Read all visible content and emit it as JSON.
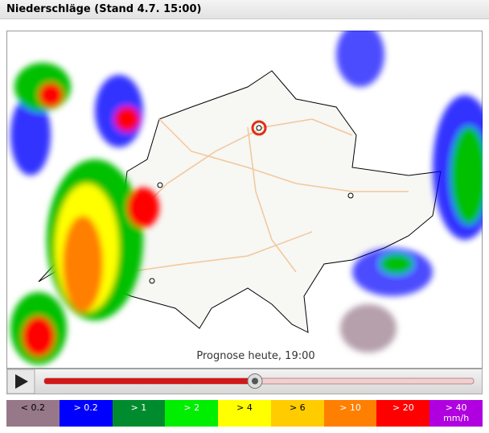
{
  "header": {
    "title": "Niederschläge (Stand 4.7. 15:00)"
  },
  "map": {
    "caption": "Prognose heute, 19:00"
  },
  "legend": [
    {
      "label": "< 0.2",
      "color": "#967888",
      "text_color": "#000000"
    },
    {
      "label": "> 0.2",
      "color": "#0000ff",
      "text_color": "#ffffff"
    },
    {
      "label": "> 1",
      "color": "#008c2e",
      "text_color": "#ffffff"
    },
    {
      "label": "> 2",
      "color": "#00ee00",
      "text_color": "#ffffff"
    },
    {
      "label": "> 4",
      "color": "#ffff00",
      "text_color": "#000000"
    },
    {
      "label": "> 6",
      "color": "#ffcc00",
      "text_color": "#000000"
    },
    {
      "label": "> 10",
      "color": "#ff7f00",
      "text_color": "#ffffff"
    },
    {
      "label": "> 20",
      "color": "#ff0000",
      "text_color": "#ffffff"
    },
    {
      "label": "> 40",
      "unit": "mm/h",
      "color": "#b000e0",
      "text_color": "#ffffff"
    }
  ]
}
